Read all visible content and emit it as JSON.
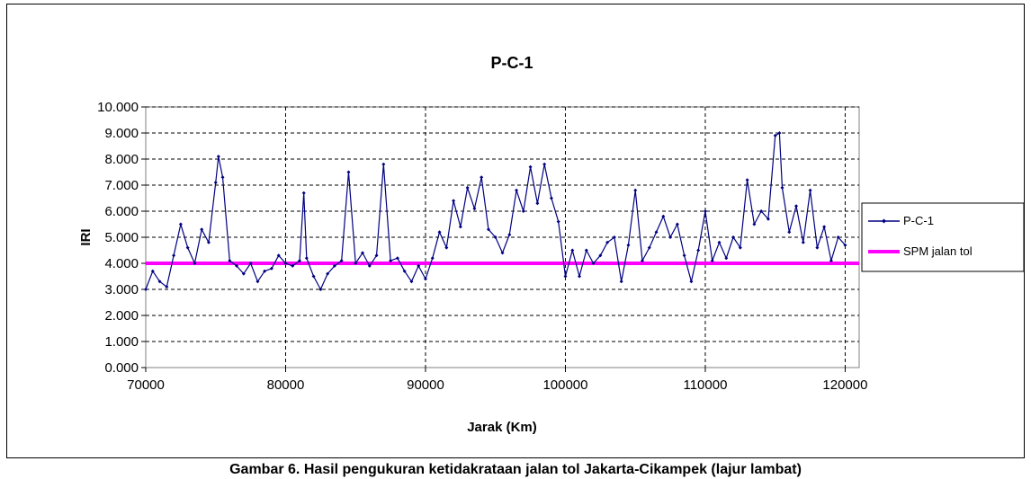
{
  "chart_data": {
    "type": "line",
    "title": "P-C-1",
    "xlabel": "Jarak (Km)",
    "ylabel": "IRI",
    "xlim": [
      70000,
      121000
    ],
    "ylim": [
      0,
      10
    ],
    "x_ticks": [
      "70000",
      "80000",
      "90000",
      "100000",
      "110000",
      "120000"
    ],
    "x_tick_values": [
      70000,
      80000,
      90000,
      100000,
      110000,
      120000
    ],
    "y_ticks": [
      "0.000",
      "1.000",
      "2.000",
      "3.000",
      "4.000",
      "5.000",
      "6.000",
      "7.000",
      "8.000",
      "9.000",
      "10.000"
    ],
    "y_tick_values": [
      0,
      1,
      2,
      3,
      4,
      5,
      6,
      7,
      8,
      9,
      10
    ],
    "grid": true,
    "legend_position": "right",
    "series": [
      {
        "name": "P-C-1",
        "color": "#000080",
        "marker": "diamond",
        "x": [
          70000,
          70500,
          71000,
          71500,
          72000,
          72500,
          73000,
          73500,
          74000,
          74500,
          75000,
          75200,
          75500,
          76000,
          76500,
          77000,
          77500,
          78000,
          78500,
          79000,
          79500,
          80000,
          80500,
          81000,
          81300,
          81500,
          82000,
          82500,
          83000,
          83500,
          84000,
          84500,
          85000,
          85500,
          86000,
          86500,
          87000,
          87500,
          88000,
          88500,
          89000,
          89500,
          90000,
          90500,
          91000,
          91500,
          92000,
          92500,
          93000,
          93500,
          94000,
          94500,
          95000,
          95500,
          96000,
          96500,
          97000,
          97500,
          98000,
          98500,
          99000,
          99500,
          100000,
          100500,
          101000,
          101500,
          102000,
          102500,
          103000,
          103500,
          104000,
          104500,
          105000,
          105500,
          106000,
          106500,
          107000,
          107500,
          108000,
          108500,
          109000,
          109500,
          110000,
          110500,
          111000,
          111500,
          112000,
          112500,
          113000,
          113500,
          114000,
          114500,
          115000,
          115300,
          115500,
          116000,
          116500,
          117000,
          117500,
          118000,
          118500,
          119000,
          119500,
          120000
        ],
        "values": [
          3.0,
          3.7,
          3.3,
          3.1,
          4.3,
          5.5,
          4.6,
          4.0,
          5.3,
          4.8,
          7.1,
          8.1,
          7.3,
          4.1,
          3.9,
          3.6,
          4.0,
          3.3,
          3.7,
          3.8,
          4.3,
          4.0,
          3.9,
          4.1,
          6.7,
          4.2,
          3.5,
          3.0,
          3.6,
          3.9,
          4.1,
          7.5,
          4.0,
          4.4,
          3.9,
          4.3,
          7.8,
          4.1,
          4.2,
          3.7,
          3.3,
          3.9,
          3.4,
          4.2,
          5.2,
          4.6,
          6.4,
          5.4,
          6.9,
          6.1,
          7.3,
          5.3,
          5.0,
          4.4,
          5.1,
          6.8,
          6.0,
          7.7,
          6.3,
          7.8,
          6.5,
          5.6,
          3.5,
          4.5,
          3.5,
          4.5,
          4.0,
          4.3,
          4.8,
          5.0,
          3.3,
          4.7,
          6.8,
          4.1,
          4.6,
          5.2,
          5.8,
          5.0,
          5.5,
          4.3,
          3.3,
          4.5,
          6.0,
          4.1,
          4.8,
          4.2,
          5.0,
          4.6,
          7.2,
          5.5,
          6.0,
          5.7,
          8.9,
          9.0,
          6.9,
          5.2,
          6.2,
          4.8,
          6.8,
          4.6,
          5.4,
          4.1,
          5.0,
          4.7
        ],
        "legend_label": "P-C-1"
      },
      {
        "name": "SPM jalan tol",
        "color": "#ff00ff",
        "x": [
          70000,
          121000
        ],
        "values": [
          4.0,
          4.0
        ],
        "legend_label": "SPM jalan tol"
      }
    ]
  },
  "caption": "Gambar 6. Hasil pengukuran ketidakrataan jalan tol Jakarta-Cikampek (lajur lambat)"
}
